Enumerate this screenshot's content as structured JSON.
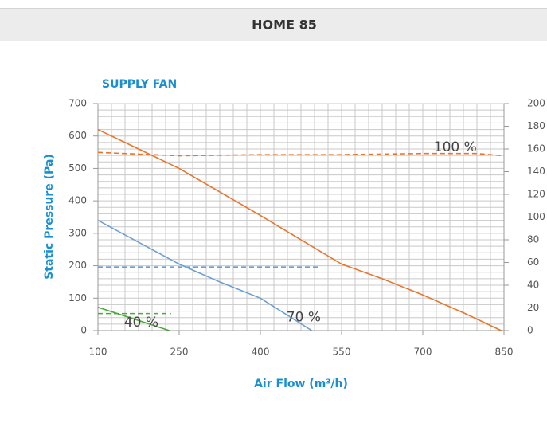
{
  "header": {
    "title": "HOME 85"
  },
  "chart_data": {
    "type": "line",
    "title": "SUPPLY FAN",
    "x_label": "Air Flow (m³/h)",
    "y_label": "Static Pressure (Pa)",
    "xlim": [
      100,
      850
    ],
    "xticks": [
      100,
      250,
      400,
      550,
      700,
      850
    ],
    "ylim": [
      0,
      700
    ],
    "yticks": [
      0,
      100,
      200,
      300,
      400,
      500,
      600,
      700
    ],
    "y2lim": [
      0,
      200
    ],
    "y2ticks": [
      0,
      20,
      40,
      60,
      80,
      100,
      120,
      140,
      160,
      180,
      200
    ],
    "grid": true,
    "grid_subdivisions": {
      "x": 6,
      "y": 5
    },
    "series": [
      {
        "name": "100 %",
        "color": "#e8762b",
        "dash": false,
        "x": [
          100,
          175,
          250,
          400,
          550,
          625,
          700,
          775,
          845
        ],
        "values": [
          620,
          560,
          500,
          355,
          205,
          160,
          110,
          55,
          0
        ]
      },
      {
        "name": "70 %",
        "color": "#6a9fd4",
        "dash": false,
        "x": [
          100,
          250,
          325,
          400,
          495
        ],
        "values": [
          340,
          205,
          150,
          100,
          0
        ]
      },
      {
        "name": "40 %",
        "color": "#4aab3a",
        "dash": false,
        "x": [
          100,
          232
        ],
        "values": [
          72,
          0
        ]
      },
      {
        "color": "#e8762b",
        "dash": true,
        "axis": "y2",
        "x": [
          100,
          250,
          400,
          550,
          700,
          800,
          850
        ],
        "values": [
          157,
          154,
          155,
          155,
          156,
          156,
          154
        ]
      },
      {
        "color": "#6a9fd4",
        "dash": true,
        "axis": "y2",
        "x": [
          100,
          507
        ],
        "values": [
          56,
          56
        ]
      },
      {
        "color": "#4aab3a",
        "dash": true,
        "axis": "y2",
        "x": [
          100,
          235
        ],
        "values": [
          15,
          15
        ]
      }
    ],
    "annotations": [
      {
        "text": "100 %",
        "x": 760,
        "y": 565
      },
      {
        "text": "70 %",
        "x": 480,
        "y": 40
      },
      {
        "text": "40 %",
        "x": 180,
        "y": 25
      }
    ]
  }
}
